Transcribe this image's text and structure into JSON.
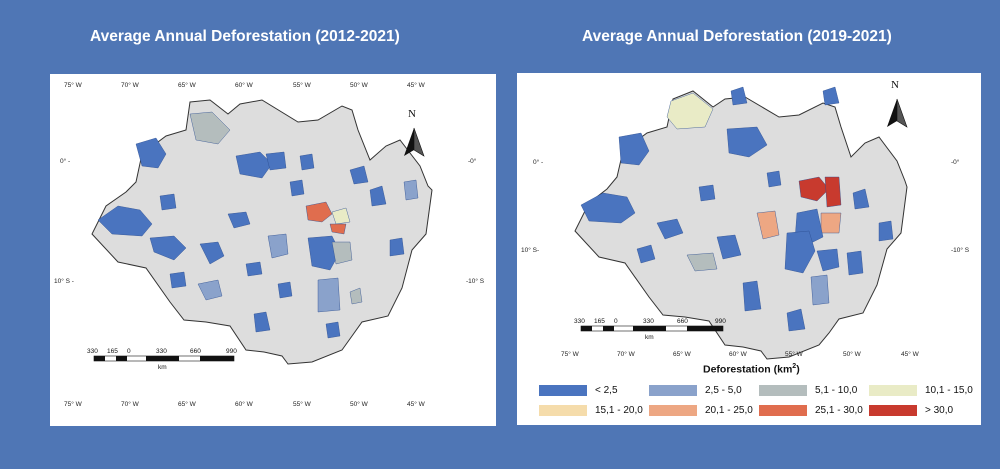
{
  "titles": {
    "left": "Average Annual Deforestation (2012-2021)",
    "right": "Average Annual Deforestation (2019-2021)"
  },
  "north_label": "N",
  "longitude_labels": [
    "75° W",
    "70° W",
    "65° W",
    "60° W",
    "55° W",
    "50° W",
    "45° W"
  ],
  "latitude_labels": {
    "zero_left": "0° -",
    "zero_right": "-0°",
    "ten_left": "10° S -",
    "ten_right": "-10° S",
    "right_panel_ten_left": "10° S-"
  },
  "scalebar": {
    "ticks": [
      "330",
      "165",
      "0",
      "330",
      "660",
      "990"
    ],
    "unit": "km"
  },
  "legend": {
    "title": "Deforestation",
    "unit_base": "(km",
    "unit_exp": "2",
    "unit_close": ")",
    "items": [
      {
        "label": "< 2,5",
        "color": "#4a74bf"
      },
      {
        "label": "2,5 - 5,0",
        "color": "#8aa2cb"
      },
      {
        "label": "5,1 - 10,0",
        "color": "#b4bdbd"
      },
      {
        "label": "10,1 - 15,0",
        "color": "#e9ebc6"
      },
      {
        "label": "15,1 - 20,0",
        "color": "#f5dcab"
      },
      {
        "label": "20,1 - 25,0",
        "color": "#eda783"
      },
      {
        "label": "25,1 - 30,0",
        "color": "#e06d4e"
      },
      {
        "label": "> 30,0",
        "color": "#c83a2e"
      }
    ]
  },
  "colors": {
    "background": "#4f76b5",
    "region_fill": "#dddddd",
    "region_outline": "#333333"
  }
}
